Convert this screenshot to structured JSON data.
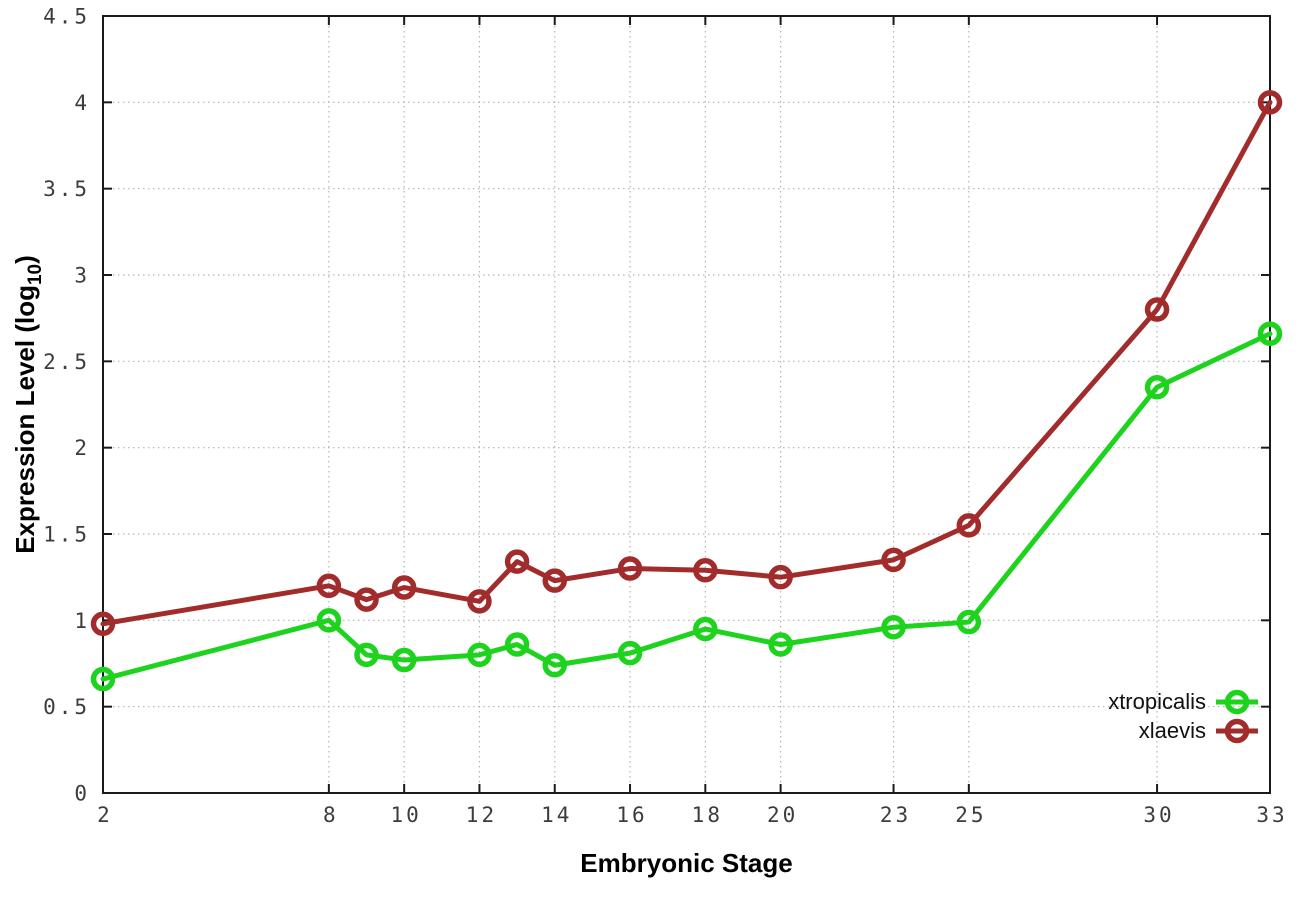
{
  "chart_data": {
    "type": "line",
    "title": "",
    "xlabel": "Embryonic Stage",
    "ylabel": "Expression Level (log10)",
    "xlim": [
      2,
      33
    ],
    "ylim": [
      0,
      4.5
    ],
    "grid": true,
    "legend_position": "inside-bottom-right",
    "marker": "open-circle",
    "x": [
      2,
      8,
      9,
      10,
      12,
      13,
      14,
      16,
      18,
      20,
      23,
      25,
      30,
      33
    ],
    "xticks": [
      2,
      8,
      10,
      12,
      14,
      16,
      18,
      20,
      23,
      25,
      30,
      33
    ],
    "xtick_labels": [
      "2",
      "8",
      "10",
      "12",
      "14",
      "16",
      "18",
      "20",
      "23",
      "25",
      "30",
      "33"
    ],
    "yticks": [
      0,
      0.5,
      1,
      1.5,
      2,
      2.5,
      3,
      3.5,
      4,
      4.5
    ],
    "ytick_labels": [
      "0",
      "0.5",
      "1",
      "1.5",
      "2",
      "2.5",
      "3",
      "3.5",
      "4",
      "4.5"
    ],
    "series": [
      {
        "name": "xtropicalis",
        "color": "#1dd31d",
        "values": [
          0.66,
          1.0,
          0.8,
          0.77,
          0.8,
          0.86,
          0.74,
          0.81,
          0.95,
          0.86,
          0.96,
          0.99,
          2.35,
          2.66
        ]
      },
      {
        "name": "xlaevis",
        "color": "#a22c2c",
        "values": [
          0.98,
          1.2,
          1.12,
          1.19,
          1.11,
          1.34,
          1.23,
          1.3,
          1.29,
          1.25,
          1.35,
          1.55,
          2.8,
          4.0
        ]
      }
    ],
    "colors": {
      "background": "#ffffff",
      "grid": "#b5b5b5",
      "border": "#1a1a1a"
    }
  }
}
